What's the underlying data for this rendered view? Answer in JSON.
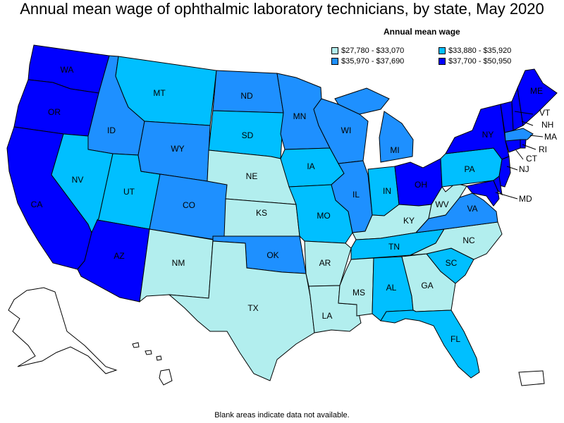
{
  "title": "Annual mean wage of ophthalmic laboratory technicians, by state, May 2020",
  "legend": {
    "title": "Annual mean wage",
    "items": [
      {
        "label": "$27,780 - $33,070",
        "color": "#b2eeee"
      },
      {
        "label": "$33,880 - $35,920",
        "color": "#00bfff"
      },
      {
        "label": "$35,970 - $37,690",
        "color": "#1e90ff"
      },
      {
        "label": "$37,700 - $50,950",
        "color": "#0000ff"
      }
    ]
  },
  "footnote": "Blank areas indicate data not available.",
  "states": {
    "WA": {
      "label": "WA",
      "bin": 3
    },
    "OR": {
      "label": "OR",
      "bin": 3
    },
    "CA": {
      "label": "CA",
      "bin": 3
    },
    "ID": {
      "label": "ID",
      "bin": 2
    },
    "NV": {
      "label": "NV",
      "bin": 1
    },
    "UT": {
      "label": "UT",
      "bin": 1
    },
    "AZ": {
      "label": "AZ",
      "bin": 3
    },
    "MT": {
      "label": "MT",
      "bin": 1
    },
    "WY": {
      "label": "WY",
      "bin": 2
    },
    "CO": {
      "label": "CO",
      "bin": 2
    },
    "NM": {
      "label": "NM",
      "bin": 0
    },
    "ND": {
      "label": "ND",
      "bin": 2
    },
    "SD": {
      "label": "SD",
      "bin": 1
    },
    "NE": {
      "label": "NE",
      "bin": 0
    },
    "KS": {
      "label": "KS",
      "bin": 0
    },
    "OK": {
      "label": "OK",
      "bin": 2
    },
    "TX": {
      "label": "TX",
      "bin": 0
    },
    "MN": {
      "label": "MN",
      "bin": 2
    },
    "IA": {
      "label": "IA",
      "bin": 1
    },
    "MO": {
      "label": "MO",
      "bin": 1
    },
    "AR": {
      "label": "AR",
      "bin": 0
    },
    "LA": {
      "label": "LA",
      "bin": 0
    },
    "WI": {
      "label": "WI",
      "bin": 2
    },
    "IL": {
      "label": "IL",
      "bin": 2
    },
    "MI": {
      "label": "MI",
      "bin": 2
    },
    "IN": {
      "label": "IN",
      "bin": 1
    },
    "OH": {
      "label": "OH",
      "bin": 3
    },
    "KY": {
      "label": "KY",
      "bin": 0
    },
    "TN": {
      "label": "TN",
      "bin": 1
    },
    "MS": {
      "label": "MS",
      "bin": 0
    },
    "AL": {
      "label": "AL",
      "bin": 1
    },
    "GA": {
      "label": "GA",
      "bin": 0
    },
    "FL": {
      "label": "FL",
      "bin": 1
    },
    "SC": {
      "label": "SC",
      "bin": 1
    },
    "NC": {
      "label": "NC",
      "bin": 0
    },
    "VA": {
      "label": "VA",
      "bin": 2
    },
    "WV": {
      "label": "WV",
      "bin": 0
    },
    "PA": {
      "label": "PA",
      "bin": 1
    },
    "NY": {
      "label": "NY",
      "bin": 3
    },
    "VT": {
      "label": "VT",
      "bin": 3
    },
    "NH": {
      "label": "NH",
      "bin": 3
    },
    "ME": {
      "label": "ME",
      "bin": 3
    },
    "MA": {
      "label": "MA",
      "bin": 2
    },
    "RI": {
      "label": "RI",
      "bin": 3
    },
    "CT": {
      "label": "CT",
      "bin": 3
    },
    "NJ": {
      "label": "NJ",
      "bin": 3
    },
    "MD": {
      "label": "MD",
      "bin": 3
    },
    "DE": {
      "label": "",
      "bin": 3
    },
    "AK": {
      "label": "",
      "bin": null
    },
    "HI": {
      "label": "",
      "bin": null
    },
    "PR": {
      "label": "",
      "bin": null
    }
  }
}
